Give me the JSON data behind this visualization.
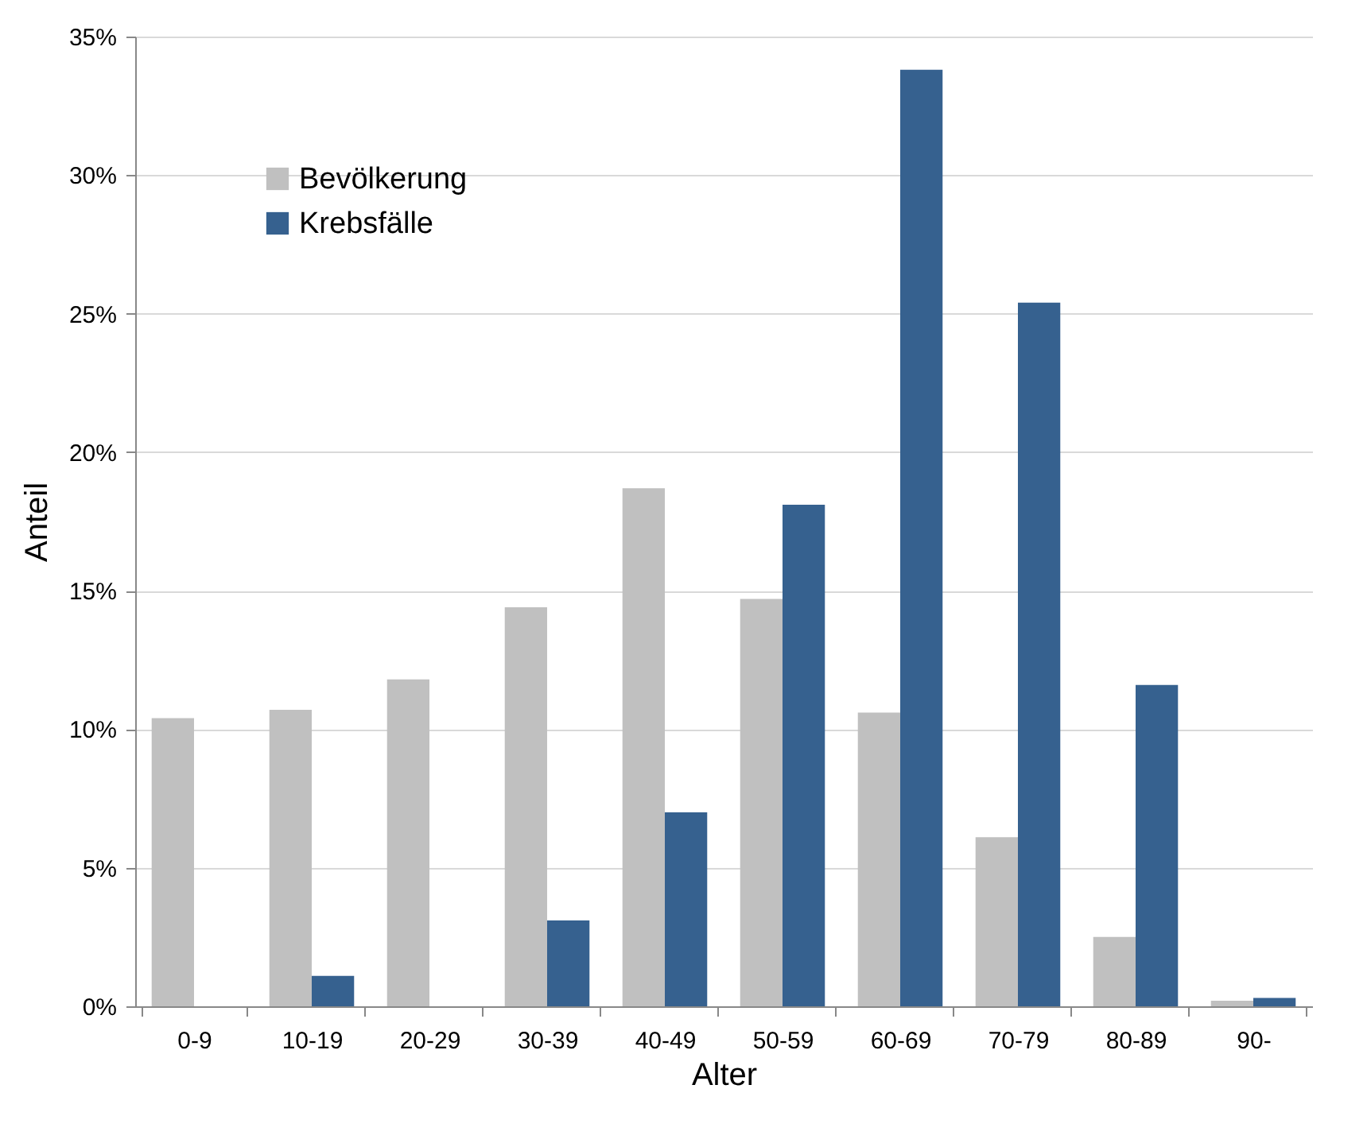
{
  "chart_data": {
    "type": "bar",
    "xlabel": "Alter",
    "ylabel": "Anteil",
    "categories": [
      "0-9",
      "10-19",
      "20-29",
      "30-39",
      "40-49",
      "50-59",
      "60-69",
      "70-79",
      "80-89",
      "90-"
    ],
    "series": [
      {
        "name": "Bevölkerung",
        "color": "#c0c0c0",
        "values": [
          10.4,
          10.7,
          11.8,
          14.4,
          18.7,
          14.7,
          10.6,
          6.1,
          2.5,
          0.2
        ]
      },
      {
        "name": "Krebsfälle",
        "color": "#36618f",
        "values": [
          0,
          1.1,
          0,
          3.1,
          7.0,
          18.1,
          33.8,
          25.4,
          11.6,
          0.3
        ]
      }
    ],
    "ylim": [
      0,
      35
    ],
    "yticks": [
      {
        "value": 0,
        "label": "0%"
      },
      {
        "value": 5,
        "label": "5%"
      },
      {
        "value": 10,
        "label": "10%"
      },
      {
        "value": 15,
        "label": "15%"
      },
      {
        "value": 20,
        "label": "20%"
      },
      {
        "value": 25,
        "label": "25%"
      },
      {
        "value": 30,
        "label": "30%"
      },
      {
        "value": 35,
        "label": "35%"
      }
    ],
    "grid": "y",
    "legend": "top left"
  }
}
